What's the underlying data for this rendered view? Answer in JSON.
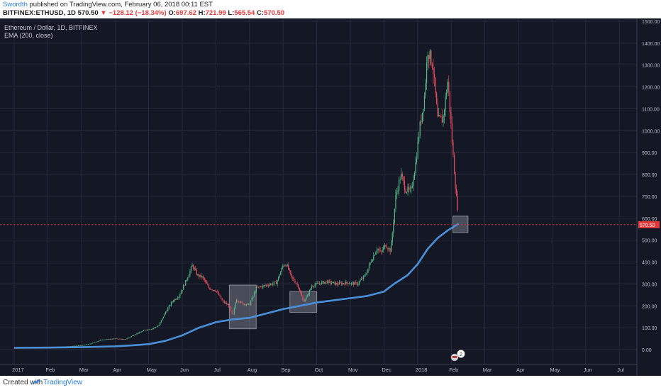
{
  "header": {
    "author": "Swordth",
    "published": " published on TradingView.com, February 06, 2018 00:11 EST",
    "symbol_line": "BITFINEX:ETHUSD, 1D",
    "price": "570.50",
    "arrow": "▼",
    "change": "−128.12 (−18.34%)",
    "o_label": "O:",
    "o_val": "697.62",
    "h_label": "H:",
    "h_val": "721.99",
    "l_label": "L:",
    "l_val": "565.54",
    "c_label": "C:",
    "c_val": "570.50"
  },
  "legend": {
    "title": "Ethereum / Dollar, 1D, BITFINEX",
    "indicator": "EMA (200, close)"
  },
  "footer": {
    "created": "Created with",
    "brand": "TradingView"
  },
  "event_badge": "2",
  "colors": {
    "background": "#141724",
    "up": "#53b987",
    "down": "#eb4d5c",
    "ema": "#4a90d9",
    "price_line": "#e2393b"
  },
  "chart_data": {
    "type": "candlestick",
    "title": "Ethereum / Dollar, 1D, BITFINEX",
    "ylim": [
      -60,
      1500
    ],
    "y_ticks": [
      "1500.00",
      "1400.00",
      "1300.00",
      "1200.00",
      "1100.00",
      "1000.00",
      "900.00",
      "800.00",
      "700.00",
      "600.00",
      "500.00",
      "400.00",
      "300.00",
      "200.00",
      "100.00",
      "0.00"
    ],
    "y_tick_values": [
      1500,
      1400,
      1300,
      1200,
      1100,
      1000,
      900,
      800,
      700,
      600,
      500,
      400,
      300,
      200,
      100,
      0
    ],
    "x_ticks": [
      "2017",
      "Feb",
      "Mar",
      "Apr",
      "May",
      "Jun",
      "Jul",
      "Aug",
      "Sep",
      "Oct",
      "Nov",
      "Dec",
      "2018",
      "Feb",
      "Mar",
      "Apr",
      "May",
      "Jun",
      "Jul"
    ],
    "x_tick_months": [
      0,
      1,
      2,
      3,
      4,
      5,
      6,
      7,
      8,
      9,
      10,
      11,
      12,
      13,
      14,
      15,
      16,
      17,
      18
    ],
    "current_price": 570.5,
    "current_price_label": "570.50",
    "price_path": [
      [
        0,
        8
      ],
      [
        0.5,
        9
      ],
      [
        1,
        11
      ],
      [
        1.5,
        14
      ],
      [
        2,
        19
      ],
      [
        2.3,
        28
      ],
      [
        2.6,
        45
      ],
      [
        3,
        50
      ],
      [
        3.3,
        47
      ],
      [
        3.6,
        70
      ],
      [
        3.9,
        90
      ],
      [
        4.1,
        95
      ],
      [
        4.3,
        110
      ],
      [
        4.5,
        170
      ],
      [
        4.7,
        220
      ],
      [
        4.9,
        245
      ],
      [
        5.1,
        310
      ],
      [
        5.3,
        385
      ],
      [
        5.45,
        340
      ],
      [
        5.6,
        330
      ],
      [
        5.8,
        280
      ],
      [
        6.0,
        270
      ],
      [
        6.2,
        220
      ],
      [
        6.4,
        200
      ],
      [
        6.5,
        150
      ],
      [
        6.6,
        230
      ],
      [
        6.8,
        210
      ],
      [
        7.0,
        205
      ],
      [
        7.2,
        280
      ],
      [
        7.5,
        295
      ],
      [
        7.8,
        305
      ],
      [
        8.0,
        385
      ],
      [
        8.1,
        390
      ],
      [
        8.25,
        330
      ],
      [
        8.45,
        290
      ],
      [
        8.6,
        220
      ],
      [
        8.7,
        240
      ],
      [
        8.85,
        290
      ],
      [
        9.0,
        300
      ],
      [
        9.3,
        310
      ],
      [
        9.6,
        300
      ],
      [
        9.9,
        305
      ],
      [
        10.2,
        300
      ],
      [
        10.45,
        340
      ],
      [
        10.6,
        400
      ],
      [
        10.8,
        465
      ],
      [
        10.9,
        440
      ],
      [
        11.05,
        480
      ],
      [
        11.2,
        450
      ],
      [
        11.35,
        700
      ],
      [
        11.5,
        800
      ],
      [
        11.65,
        730
      ],
      [
        11.8,
        720
      ],
      [
        11.95,
        860
      ],
      [
        12.05,
        1000
      ],
      [
        12.2,
        1150
      ],
      [
        12.3,
        1370
      ],
      [
        12.45,
        1300
      ],
      [
        12.6,
        1050
      ],
      [
        12.75,
        1050
      ],
      [
        12.9,
        1230
      ],
      [
        13.05,
        900
      ],
      [
        13.15,
        700
      ],
      [
        13.2,
        640
      ],
      [
        13.22,
        570.5
      ]
    ],
    "ema_path": [
      [
        0,
        8
      ],
      [
        1,
        9
      ],
      [
        2,
        11
      ],
      [
        3,
        15
      ],
      [
        3.5,
        19
      ],
      [
        4,
        25
      ],
      [
        4.5,
        40
      ],
      [
        5,
        65
      ],
      [
        5.5,
        100
      ],
      [
        6,
        125
      ],
      [
        6.5,
        138
      ],
      [
        7,
        145
      ],
      [
        7.5,
        165
      ],
      [
        8,
        185
      ],
      [
        8.5,
        200
      ],
      [
        9,
        215
      ],
      [
        9.5,
        225
      ],
      [
        10,
        235
      ],
      [
        10.5,
        245
      ],
      [
        11,
        265
      ],
      [
        11.3,
        300
      ],
      [
        11.7,
        340
      ],
      [
        12,
        390
      ],
      [
        12.3,
        460
      ],
      [
        12.6,
        510
      ],
      [
        12.9,
        545
      ],
      [
        13.22,
        575
      ]
    ],
    "highlight_boxes": [
      {
        "from_month": 6.4,
        "to_month": 7.2,
        "low": 95,
        "high": 295
      },
      {
        "from_month": 8.2,
        "to_month": 9.0,
        "low": 170,
        "high": 265
      },
      {
        "from_month": 13.05,
        "to_month": 13.5,
        "low": 535,
        "high": 610
      }
    ]
  }
}
